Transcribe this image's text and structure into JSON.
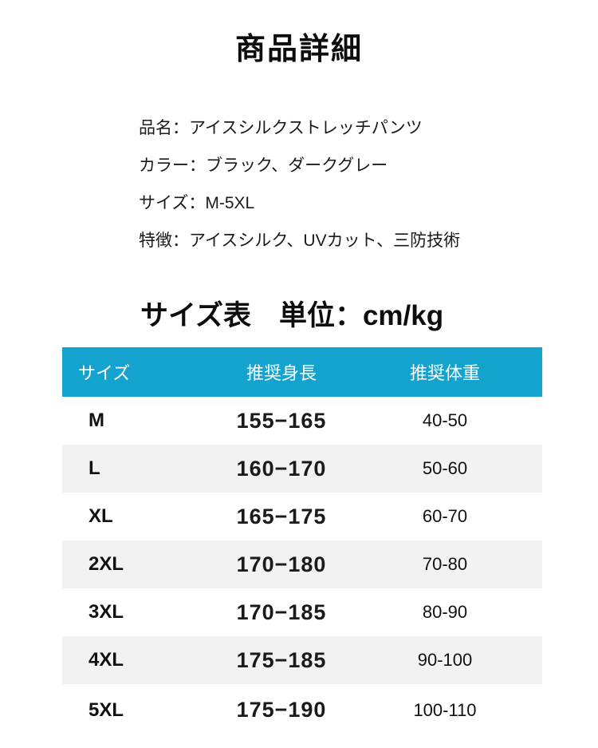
{
  "page": {
    "title": "商品詳細"
  },
  "product_info": {
    "lines": [
      "品名：アイスシルクストレッチパンツ",
      "カラー：ブラック、ダークグレー",
      "サイズ：M-5XL",
      "特徴：アイスシルク、UVカット、三防技術"
    ]
  },
  "size_section": {
    "heading": "サイズ表　単位：cm/kg"
  },
  "size_table": {
    "headers": [
      "サイズ",
      "推奨身長",
      "推奨体重"
    ],
    "rows": [
      {
        "size": "M",
        "height": "155−165",
        "weight": "40-50"
      },
      {
        "size": "L",
        "height": "160−170",
        "weight": "50-60"
      },
      {
        "size": "XL",
        "height": "165−175",
        "weight": "60-70"
      },
      {
        "size": "2XL",
        "height": "170−180",
        "weight": "70-80"
      },
      {
        "size": "3XL",
        "height": "170−185",
        "weight": "80-90"
      },
      {
        "size": "4XL",
        "height": "175−185",
        "weight": "90-100"
      },
      {
        "size": "5XL",
        "height": "175−190",
        "weight": "100-110"
      }
    ],
    "colors": {
      "header_bg": "#14a2cf",
      "header_text": "#ffffff",
      "row_bg": "#ffffff",
      "row_alt_bg": "#f2f2f2"
    }
  }
}
